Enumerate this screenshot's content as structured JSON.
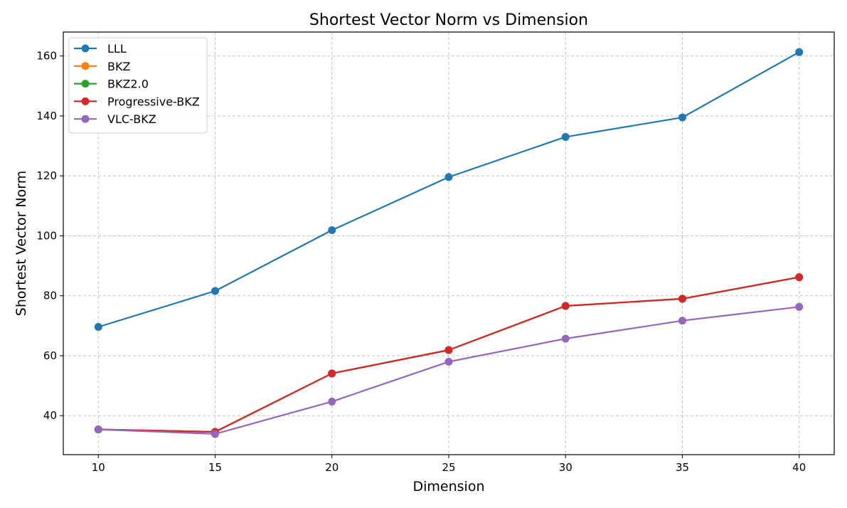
{
  "chart_data": {
    "type": "line",
    "title": "Shortest Vector Norm vs Dimension",
    "xlabel": "Dimension",
    "ylabel": "Shortest Vector Norm",
    "x": [
      10,
      15,
      20,
      25,
      30,
      35,
      40
    ],
    "xticks": [
      10,
      15,
      20,
      25,
      30,
      35,
      40
    ],
    "yticks": [
      40,
      60,
      80,
      100,
      120,
      140,
      160
    ],
    "xlim": [
      8.5,
      41.5
    ],
    "ylim": [
      27,
      168
    ],
    "grid": true,
    "legend_position": "top-left",
    "series": [
      {
        "name": "LLL",
        "color": "#1f77b4",
        "values": [
          69.6,
          81.6,
          101.9,
          119.6,
          133.0,
          139.5,
          161.3
        ]
      },
      {
        "name": "BKZ",
        "color": "#ff7f0e",
        "values": [
          35.4,
          34.6,
          54.1,
          61.9,
          76.6,
          79.0,
          86.2
        ]
      },
      {
        "name": "BKZ2.0",
        "color": "#2ca02c",
        "values": [
          35.4,
          34.6,
          54.1,
          61.9,
          76.6,
          79.0,
          86.2
        ]
      },
      {
        "name": "Progressive-BKZ",
        "color": "#d62728",
        "values": [
          35.4,
          34.6,
          54.1,
          61.9,
          76.6,
          79.0,
          86.2
        ]
      },
      {
        "name": "VLC-BKZ",
        "color": "#9467bd",
        "values": [
          35.4,
          33.9,
          44.7,
          58.0,
          65.7,
          71.7,
          76.3
        ]
      }
    ]
  }
}
